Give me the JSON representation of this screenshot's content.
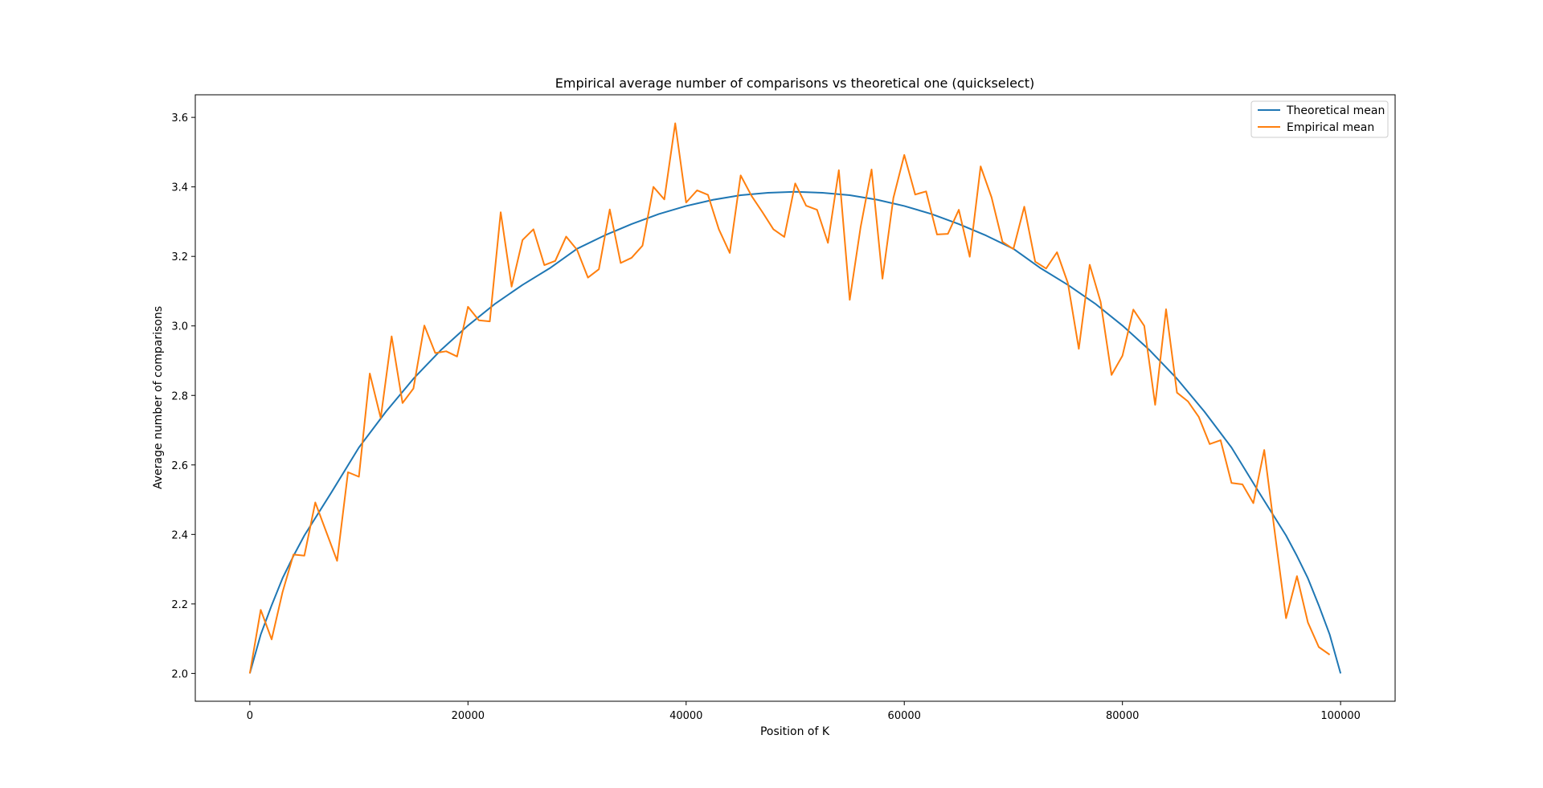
{
  "chart_data": {
    "type": "line",
    "title": "Empirical average number of comparisons vs theoretical one (quickselect)",
    "xlabel": "Position of K",
    "ylabel": "Average number of comparisons",
    "xlim": [
      -5000,
      105000
    ],
    "ylim": [
      1.92,
      3.665
    ],
    "x_ticks": [
      0,
      20000,
      40000,
      60000,
      80000,
      100000
    ],
    "x_tick_labels": [
      "0",
      "20000",
      "40000",
      "60000",
      "80000",
      "100000"
    ],
    "y_ticks": [
      2.0,
      2.2,
      2.4,
      2.6,
      2.8,
      3.0,
      3.2,
      3.4,
      3.6
    ],
    "y_tick_labels": [
      "2.0",
      "2.2",
      "2.4",
      "2.6",
      "2.8",
      "3.0",
      "3.2",
      "3.4",
      "3.6"
    ],
    "grid": false,
    "legend_position": "top-right",
    "series": [
      {
        "name": "Theoretical mean",
        "color": "#1f77b4",
        "x": [
          0,
          1000,
          2000,
          3000,
          4000,
          5000,
          7500,
          10000,
          12500,
          15000,
          17500,
          20000,
          22500,
          25000,
          27500,
          30000,
          32500,
          35000,
          37500,
          40000,
          42500,
          45000,
          47500,
          50000,
          52500,
          55000,
          57500,
          60000,
          62500,
          65000,
          67500,
          70000,
          72500,
          75000,
          77500,
          80000,
          82500,
          85000,
          87500,
          90000,
          92500,
          95000,
          96000,
          97000,
          98000,
          99000,
          100000
        ],
        "y": [
          2.0,
          2.112,
          2.196,
          2.274,
          2.338,
          2.397,
          2.522,
          2.65,
          2.754,
          2.848,
          2.93,
          3.001,
          3.064,
          3.118,
          3.166,
          3.222,
          3.26,
          3.293,
          3.322,
          3.345,
          3.363,
          3.376,
          3.383,
          3.386,
          3.383,
          3.376,
          3.363,
          3.345,
          3.322,
          3.293,
          3.26,
          3.222,
          3.166,
          3.118,
          3.064,
          3.001,
          2.93,
          2.848,
          2.754,
          2.65,
          2.522,
          2.397,
          2.338,
          2.274,
          2.196,
          2.112,
          2.0
        ]
      },
      {
        "name": "Empirical mean",
        "color": "#ff7f0e",
        "x": [
          0,
          1000,
          2000,
          3000,
          4000,
          5000,
          6000,
          7000,
          8000,
          9000,
          10000,
          11000,
          12000,
          13000,
          14000,
          15000,
          16000,
          17000,
          18000,
          19000,
          20000,
          21000,
          22000,
          23000,
          24000,
          25000,
          26000,
          27000,
          28000,
          29000,
          30000,
          31000,
          32000,
          33000,
          34000,
          35000,
          36000,
          37000,
          38000,
          39000,
          40000,
          41000,
          42000,
          43000,
          44000,
          45000,
          46000,
          47000,
          48000,
          49000,
          50000,
          51000,
          52000,
          53000,
          54000,
          55000,
          56000,
          57000,
          58000,
          59000,
          60000,
          61000,
          62000,
          63000,
          64000,
          65000,
          66000,
          67000,
          68000,
          69000,
          70000,
          71000,
          72000,
          73000,
          74000,
          75000,
          76000,
          77000,
          78000,
          79000,
          80000,
          81000,
          82000,
          83000,
          84000,
          85000,
          86000,
          87000,
          88000,
          89000,
          90000,
          91000,
          92000,
          93000,
          94000,
          95000,
          96000,
          97000,
          98000,
          99000
        ],
        "y": [
          2.0,
          2.183,
          2.098,
          2.234,
          2.342,
          2.339,
          2.492,
          2.408,
          2.324,
          2.579,
          2.566,
          2.863,
          2.735,
          2.97,
          2.778,
          2.82,
          3.001,
          2.922,
          2.927,
          2.912,
          3.055,
          3.016,
          3.013,
          3.327,
          3.113,
          3.247,
          3.278,
          3.175,
          3.187,
          3.257,
          3.219,
          3.139,
          3.163,
          3.335,
          3.181,
          3.196,
          3.231,
          3.4,
          3.364,
          3.583,
          3.355,
          3.39,
          3.377,
          3.278,
          3.21,
          3.433,
          3.374,
          3.327,
          3.278,
          3.256,
          3.41,
          3.346,
          3.334,
          3.239,
          3.448,
          3.075,
          3.285,
          3.45,
          3.136,
          3.368,
          3.492,
          3.378,
          3.387,
          3.263,
          3.265,
          3.334,
          3.199,
          3.459,
          3.37,
          3.242,
          3.221,
          3.343,
          3.185,
          3.165,
          3.212,
          3.123,
          2.934,
          3.176,
          3.069,
          2.859,
          2.914,
          3.047,
          3.0,
          2.773,
          3.048,
          2.808,
          2.783,
          2.738,
          2.66,
          2.671,
          2.548,
          2.544,
          2.49,
          2.643,
          2.398,
          2.159,
          2.28,
          2.147,
          2.076,
          2.054
        ]
      }
    ]
  }
}
